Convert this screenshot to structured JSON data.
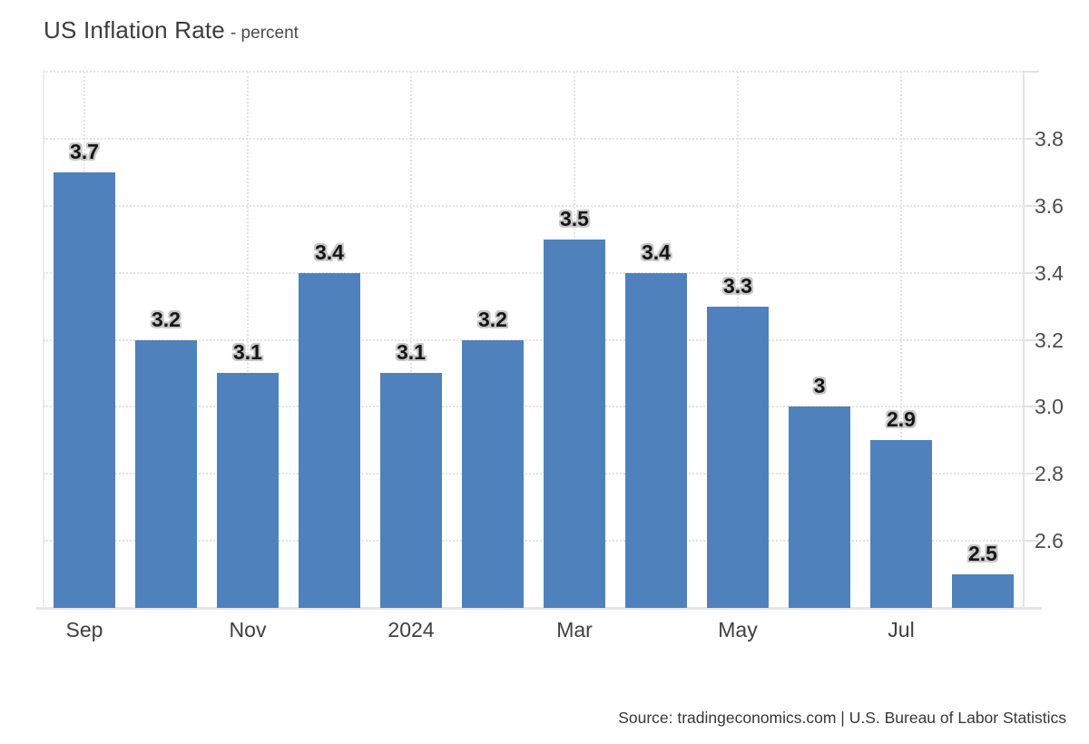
{
  "chart_data": {
    "type": "bar",
    "title": "US Inflation Rate",
    "subtitle": "- percent",
    "values": [
      3.7,
      3.2,
      3.1,
      3.4,
      3.1,
      3.2,
      3.5,
      3.4,
      3.3,
      3,
      2.9,
      2.5
    ],
    "bar_labels": [
      "3.7",
      "3.2",
      "3.1",
      "3.4",
      "3.1",
      "3.2",
      "3.5",
      "3.4",
      "3.3",
      "3",
      "2.9",
      "2.5"
    ],
    "x_ticks": [
      {
        "index": 0,
        "label": "Sep"
      },
      {
        "index": 2,
        "label": "Nov"
      },
      {
        "index": 4,
        "label": "2024"
      },
      {
        "index": 6,
        "label": "Mar"
      },
      {
        "index": 8,
        "label": "May"
      },
      {
        "index": 10,
        "label": "Jul"
      }
    ],
    "y_ticks": [
      "3.8",
      "3.6",
      "3.4",
      "3.2",
      "3.0",
      "2.8",
      "2.6"
    ],
    "ylim": [
      2.4,
      4.0
    ],
    "grid": "dotted",
    "legend": "none",
    "bar_color": "#4f81bc",
    "source": "Source: tradingeconomics.com | U.S. Bureau of Labor Statistics"
  }
}
